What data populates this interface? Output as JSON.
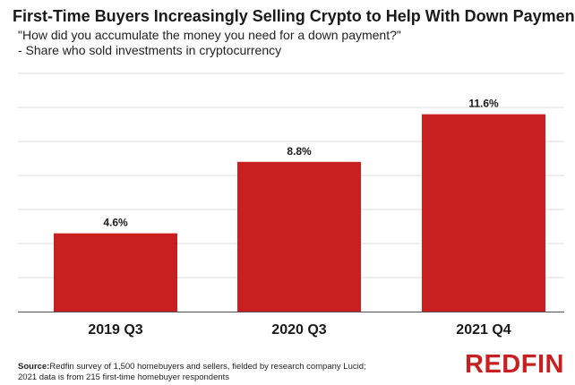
{
  "title": "First-Time Buyers Increasingly Selling Crypto to Help With Down Payment",
  "subtitle_lines": [
    "\"How did you accumulate the money you need for a down payment?\"",
    " - Share who sold investments in cryptocurrency"
  ],
  "source": {
    "label": "Source:",
    "line1": "Redfin survey of 1,500 homebuyers and sellers, fielded by research company Lucid;",
    "line2": "2021 data is from 215 first-time homebuyer respondents"
  },
  "logo_text": "REDFIN",
  "colors": {
    "bar": "#c82021",
    "grid": "#dddddd",
    "text": "#1a1a1a"
  },
  "chart_data": {
    "type": "bar",
    "categories": [
      "2019 Q3",
      "2020 Q3",
      "2021 Q4"
    ],
    "values": [
      4.6,
      8.8,
      11.6
    ],
    "data_labels": [
      "4.6%",
      "8.8%",
      "11.6%"
    ],
    "title": "First-Time Buyers Increasingly Selling Crypto to Help With Down Payment",
    "xlabel": "",
    "ylabel": "",
    "ylim": [
      0,
      14
    ],
    "grid": true,
    "legend": "none"
  }
}
